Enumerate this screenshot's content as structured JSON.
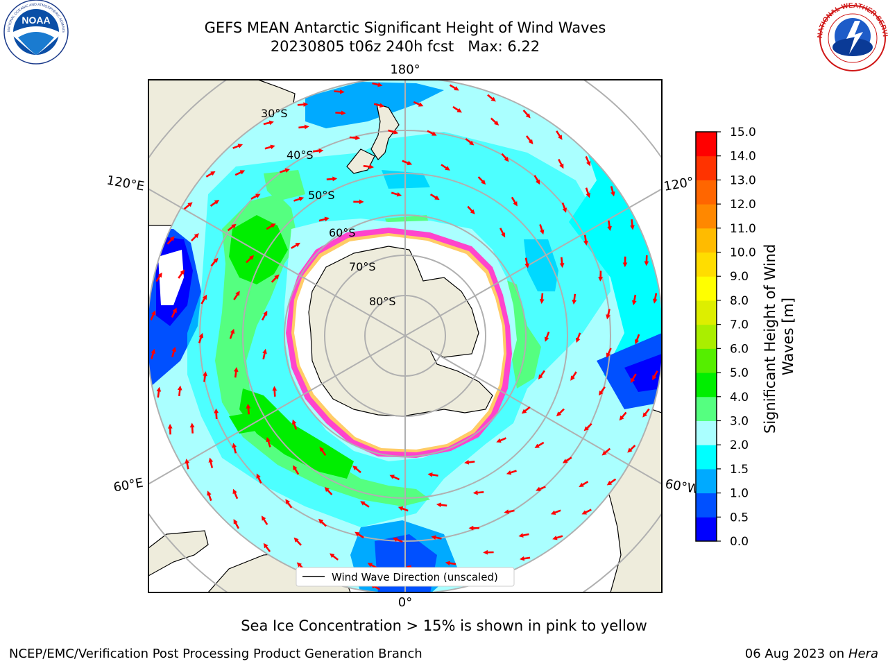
{
  "header": {
    "title_line1": "GEFS MEAN Antarctic Significant Height of Wind Waves",
    "title_line2": "20230805 t06z 240h fcst   Max: 6.22"
  },
  "logos": {
    "noaa_text": "NOAA",
    "noaa_ring_text": "NATIONAL OCEANIC AND ATMOSPHERIC ADMINISTRATION · U.S. DEPARTMENT OF COMMERCE",
    "nws_ring_text": "NATIONAL WEATHER SERVICE"
  },
  "map": {
    "lon_labels": {
      "top": "180°",
      "bottom": "0°",
      "left_upper": "120°E",
      "left_lower": "60°E",
      "right_upper": "120°",
      "right_lower": "60°W"
    },
    "lat_labels": [
      "30°S",
      "40°S",
      "50°S",
      "60°S",
      "70°S",
      "80°S"
    ],
    "legend_label": "Wind Wave Direction (unscaled)",
    "arrow_color": "#ff0000"
  },
  "colorbar": {
    "label": "Significant Height of Wind Waves [m]",
    "ticks": [
      "0.0",
      "0.5",
      "1.0",
      "1.5",
      "2.0",
      "3.0",
      "4.0",
      "5.0",
      "6.0",
      "7.0",
      "8.0",
      "9.0",
      "10.0",
      "11.0",
      "12.0",
      "13.0",
      "14.0",
      "15.0"
    ],
    "colors": [
      "#0000ff",
      "#0050ff",
      "#00aaff",
      "#00ffff",
      "#aaffff",
      "#55ff80",
      "#00ee00",
      "#55ee00",
      "#aaee00",
      "#ddee00",
      "#ffff00",
      "#ffdd00",
      "#ffbb00",
      "#ff8800",
      "#ff6600",
      "#ff3300",
      "#ff0000"
    ]
  },
  "notes": {
    "ice_note": "Sea Ice Concentration > 15% is shown in pink to yellow",
    "footer_left": "NCEP/EMC/Verification Post Processing Product Generation Branch",
    "footer_date": "06 Aug 2023 on",
    "footer_host": "Hera"
  }
}
